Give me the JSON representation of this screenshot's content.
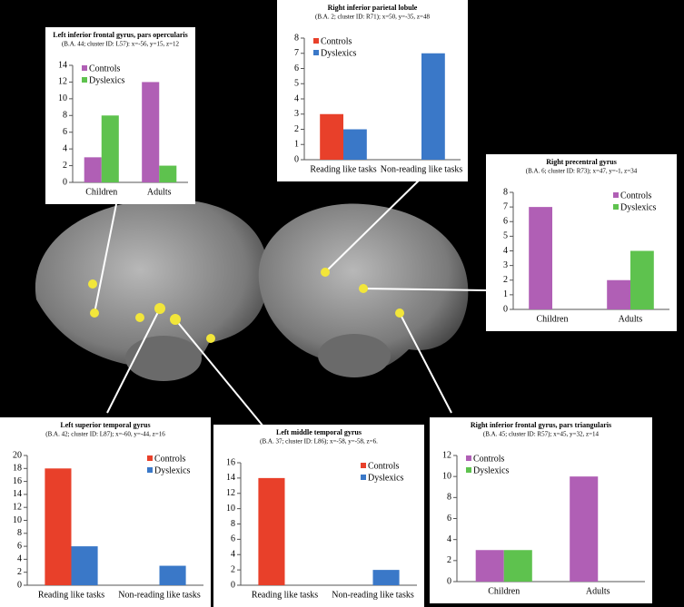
{
  "chart_data": [
    {
      "type": "bar",
      "title": "Left inferior frontal gyrus, pars opercularis",
      "subtitle": "(B.A. 44; cluster ID: L57): x=-56, y=15, z=12",
      "categories": [
        "Children",
        "Adults"
      ],
      "series": [
        {
          "name": "Controls",
          "color": "#b05fb5",
          "values": [
            3,
            12
          ]
        },
        {
          "name": "Dyslexics",
          "color": "#5ec24e",
          "values": [
            8,
            2
          ]
        }
      ],
      "ylim": [
        0,
        14
      ],
      "yticks": [
        0,
        2,
        4,
        6,
        8,
        10,
        12,
        14
      ],
      "legend": "upper left"
    },
    {
      "type": "bar",
      "title": "Right inferior parietal lobule",
      "subtitle": "(B.A. 2; cluster ID: R71); x=50, y=-35, z=48",
      "categories": [
        "Reading like tasks",
        "Non-reading like tasks"
      ],
      "series": [
        {
          "name": "Controls",
          "color": "#e8402a",
          "values": [
            3,
            0
          ]
        },
        {
          "name": "Dyslexics",
          "color": "#3a78c8",
          "values": [
            2,
            7
          ]
        }
      ],
      "ylim": [
        0,
        8
      ],
      "yticks": [
        0,
        1,
        2,
        3,
        4,
        5,
        6,
        7,
        8
      ],
      "legend": "upper left"
    },
    {
      "type": "bar",
      "title": "Right precentral gyrus",
      "subtitle": "(B.A. 6; cluster ID: R73); x=47, y=-1, z=34",
      "categories": [
        "Children",
        "Adults"
      ],
      "series": [
        {
          "name": "Controls",
          "color": "#b05fb5",
          "values": [
            7,
            2
          ]
        },
        {
          "name": "Dyslexics",
          "color": "#5ec24e",
          "values": [
            0,
            4
          ]
        }
      ],
      "ylim": [
        0,
        8
      ],
      "yticks": [
        0,
        1,
        2,
        3,
        4,
        5,
        6,
        7,
        8
      ],
      "legend": "upper right"
    },
    {
      "type": "bar",
      "title": "Left superior temporal gyrus",
      "subtitle": "(B.A. 42; cluster ID: L87); x=-60, y=-44, z=16",
      "categories": [
        "Reading like tasks",
        "Non-reading like tasks"
      ],
      "series": [
        {
          "name": "Controls",
          "color": "#e8402a",
          "values": [
            18,
            0
          ]
        },
        {
          "name": "Dyslexics",
          "color": "#3a78c8",
          "values": [
            6,
            3
          ]
        }
      ],
      "ylim": [
        0,
        20
      ],
      "yticks": [
        0,
        2,
        4,
        6,
        8,
        10,
        12,
        14,
        16,
        18,
        20
      ],
      "legend": "upper right"
    },
    {
      "type": "bar",
      "title": "Left middle temporal gyrus",
      "subtitle": "(B.A. 37; cluster ID: L86); x=-58, y=-58, z=6.",
      "categories": [
        "Reading like tasks",
        "Non-reading like tasks"
      ],
      "series": [
        {
          "name": "Controls",
          "color": "#e8402a",
          "values": [
            14,
            0
          ]
        },
        {
          "name": "Dyslexics",
          "color": "#3a78c8",
          "values": [
            0,
            2
          ]
        }
      ],
      "ylim": [
        0,
        16
      ],
      "yticks": [
        0,
        2,
        4,
        6,
        8,
        10,
        12,
        14,
        16
      ],
      "legend": "upper right"
    },
    {
      "type": "bar",
      "title": "Right inferior frontal gyrus, pars triangularis",
      "subtitle": "(B.A. 45; cluster ID: R57); x=45, y=32, z=14",
      "categories": [
        "Children",
        "Adults"
      ],
      "series": [
        {
          "name": "Controls",
          "color": "#b05fb5",
          "values": [
            3,
            10
          ]
        },
        {
          "name": "Dyslexics",
          "color": "#5ec24e",
          "values": [
            3,
            0
          ]
        }
      ],
      "ylim": [
        0,
        12
      ],
      "yticks": [
        0,
        2,
        4,
        6,
        8,
        10,
        12
      ],
      "legend": "upper left"
    }
  ]
}
